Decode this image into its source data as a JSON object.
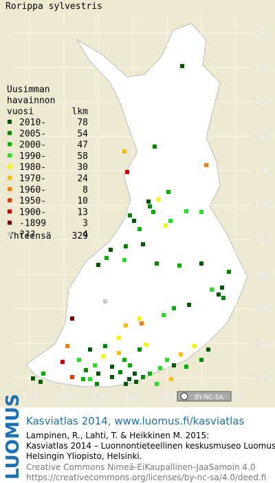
{
  "title": "Rorippa sylvestris",
  "legend": {
    "heading": [
      "Uusimman",
      "havainnon"
    ],
    "col_year": "vuosi",
    "col_count": "lkm",
    "rows": [
      {
        "label": "2010-",
        "count": 78,
        "color": "#005a00"
      },
      {
        "label": "2005-",
        "count": 54,
        "color": "#008a00"
      },
      {
        "label": "2000-",
        "count": 47,
        "color": "#00b400"
      },
      {
        "label": "1990-",
        "count": 58,
        "color": "#22e022"
      },
      {
        "label": "1980-",
        "count": 30,
        "color": "#f6f600"
      },
      {
        "label": "1970-",
        "count": 24,
        "color": "#ffbf00"
      },
      {
        "label": "1960-",
        "count": 8,
        "color": "#ff7a00"
      },
      {
        "label": "1950-",
        "count": 10,
        "color": "#f03000"
      },
      {
        "label": "1900-",
        "count": 13,
        "color": "#d00000"
      },
      {
        "label": "-1899",
        "count": 3,
        "color": "#7a0000"
      },
      {
        "label": "???",
        "count": 4,
        "color": "#c8c8c8"
      }
    ],
    "total_label": "Yhteensä",
    "total": 329
  },
  "grid": {
    "x_labels": [
      "310",
      "320",
      "330",
      "340",
      "350",
      "360",
      "370"
    ],
    "y_labels": [
      "770",
      "760",
      "750",
      "740",
      "730",
      "720",
      "710",
      "700",
      "690",
      "680",
      "670"
    ]
  },
  "license_badge": "BY-NC-SA",
  "footer": {
    "logo": "LUOMUS",
    "link": "Kasviatlas 2014, www.luomus.fi/kasviatlas",
    "citation": [
      "Lampinen, R., Lahti, T. & Heikkinen M. 2015:",
      "Kasviatlas 2014 – Luonnontieteellinen keskusmuseo Luomus,",
      "Helsingin Yliopisto, Helsinki."
    ],
    "license": [
      "Creative Commons Nimeä-EiKaupallinen-JaaSamoin 4.0",
      "https://creativecommons.org/licenses/by-nc-sa/4.0/deed.fi"
    ]
  }
}
